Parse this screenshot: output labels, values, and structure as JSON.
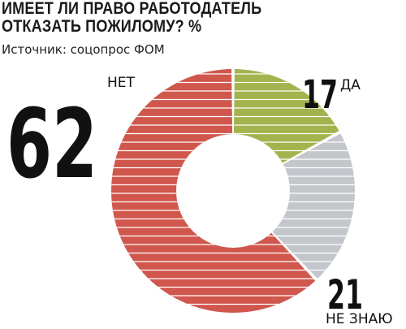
{
  "title_lines": [
    "ИМЕЕТ ЛИ ПРАВО РАБОТОДАТЕЛЬ",
    "ОТКАЗАТЬ ПОЖИЛОМУ? %"
  ],
  "source": "Источник: соцопрос ФОМ",
  "chart_data": {
    "type": "pie",
    "variant": "donut",
    "title": "ИМЕЕТ ЛИ ПРАВО РАБОТОДАТЕЛЬ ОТКАЗАТЬ ПОЖИЛОМУ? %",
    "subtitle": "Источник: соцопрос ФОМ",
    "unit": "%",
    "slices": [
      {
        "label": "ДА",
        "value": 17,
        "color": "#a3b34e"
      },
      {
        "label": "НЕ ЗНАЮ",
        "value": 21,
        "color": "#c3c7cc"
      },
      {
        "label": "НЕТ",
        "value": 62,
        "color": "#d0574d"
      }
    ],
    "stripe_color": "#ffffff",
    "legend": "none"
  }
}
